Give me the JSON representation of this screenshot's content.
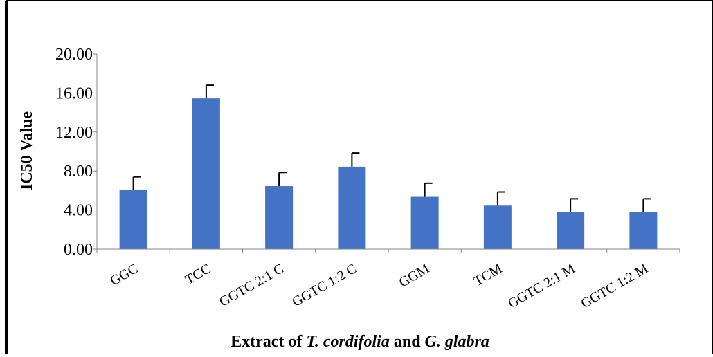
{
  "chart_data": {
    "type": "bar",
    "xlabel_parts": [
      {
        "text": "Extract of ",
        "italic": false
      },
      {
        "text": "T. cordifolia",
        "italic": true
      },
      {
        "text": " and ",
        "italic": false
      },
      {
        "text": "G. glabra",
        "italic": true
      }
    ],
    "ylabel": "IC50 Value",
    "ylim": [
      0,
      20
    ],
    "yticks": [
      "0.00",
      "4.00",
      "8.00",
      "12.00",
      "16.00",
      "20.00"
    ],
    "ytick_values": [
      0,
      4,
      8,
      12,
      16,
      20
    ],
    "grid": false,
    "legend": "none",
    "categories": [
      "GGC",
      "TCC",
      "GGTC 2:1 C",
      "GGTC 1:2 C",
      "GGM",
      "TCM",
      "GGTC 2:1 M",
      "GGTC 1:2 M"
    ],
    "values": [
      6.05,
      15.45,
      6.45,
      8.45,
      5.35,
      4.45,
      3.8,
      3.8
    ],
    "errors": [
      1.35,
      1.35,
      1.4,
      1.4,
      1.4,
      1.4,
      1.35,
      1.35
    ],
    "bar_color": "#4472C4",
    "axis_color": "#868686",
    "error_color": "#000000"
  }
}
